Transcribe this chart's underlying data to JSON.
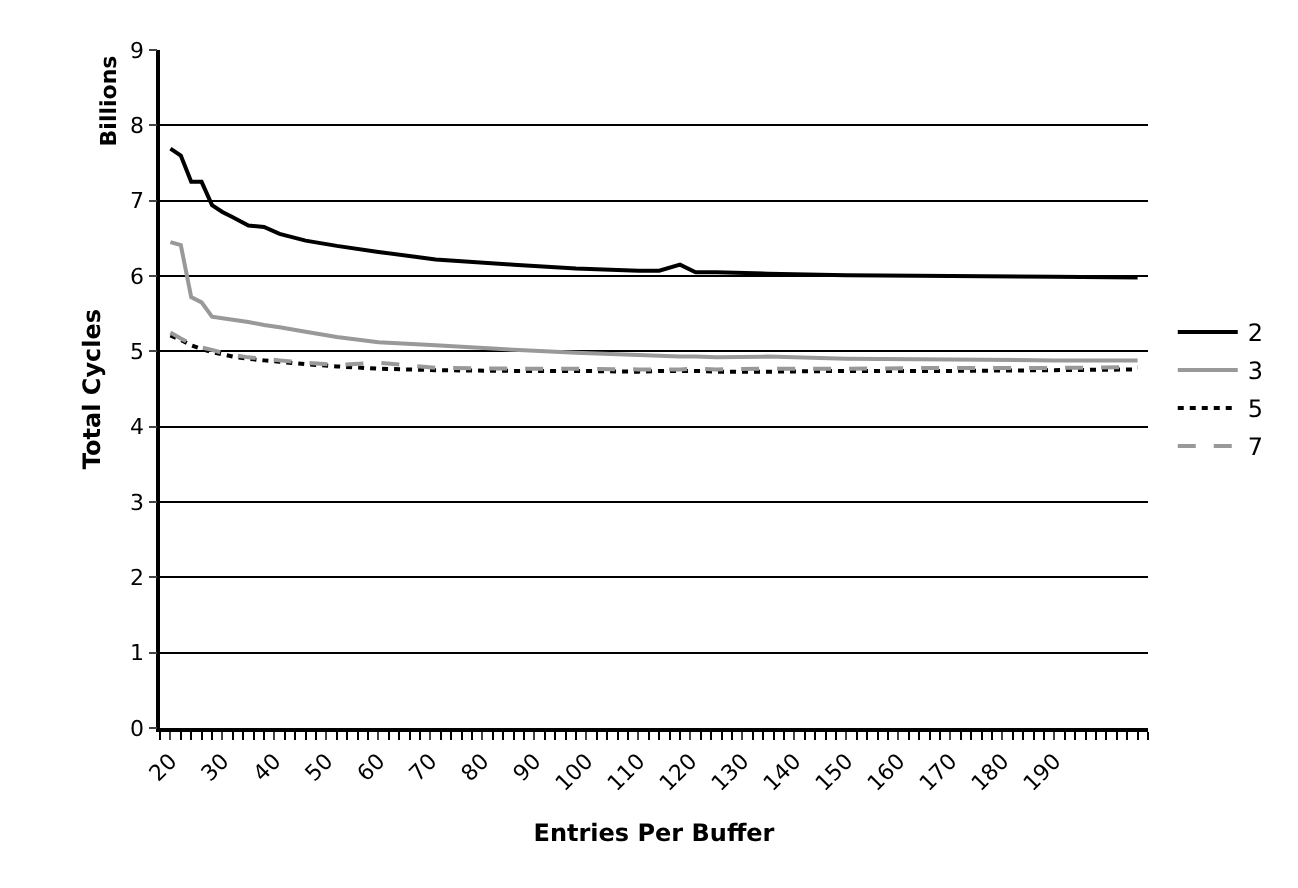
{
  "chart_data": {
    "type": "line",
    "xlabel": "Entries Per Buffer",
    "ylabel": "Total Cycles",
    "annotations": [
      "Billions"
    ],
    "x": [
      20,
      22,
      24,
      26,
      28,
      30,
      32,
      35,
      38,
      41,
      46,
      52,
      60,
      71,
      86,
      98,
      110,
      114,
      118,
      121,
      125,
      135,
      150,
      170,
      190,
      206
    ],
    "xlim": [
      18,
      208
    ],
    "xticks": [
      20,
      30,
      40,
      50,
      60,
      70,
      80,
      90,
      100,
      110,
      120,
      130,
      140,
      150,
      160,
      170,
      180,
      190
    ],
    "ylim": [
      0,
      9
    ],
    "yticks": [
      0,
      1,
      2,
      3,
      4,
      5,
      6,
      7,
      8,
      9
    ],
    "grid": "y",
    "legend": "right",
    "marker": "none",
    "series": [
      {
        "name": "2",
        "color": "#000000",
        "line_style": "solid",
        "values": [
          7.69,
          7.6,
          7.25,
          7.25,
          6.94,
          6.85,
          6.78,
          6.67,
          6.65,
          6.56,
          6.47,
          6.4,
          6.32,
          6.22,
          6.15,
          6.1,
          6.07,
          6.07,
          6.15,
          6.05,
          6.05,
          6.03,
          6.01,
          6.0,
          5.99,
          5.98
        ]
      },
      {
        "name": "3",
        "color": "#999999",
        "line_style": "solid",
        "values": [
          6.45,
          6.41,
          5.72,
          5.65,
          5.46,
          5.44,
          5.42,
          5.39,
          5.35,
          5.32,
          5.26,
          5.19,
          5.12,
          5.08,
          5.02,
          4.98,
          4.95,
          4.94,
          4.93,
          4.93,
          4.92,
          4.93,
          4.9,
          4.89,
          4.88,
          4.88
        ]
      },
      {
        "name": "5",
        "color": "#000000",
        "line_style": "dotted",
        "values": [
          5.21,
          5.15,
          5.08,
          5.03,
          4.99,
          4.96,
          4.93,
          4.9,
          4.88,
          4.86,
          4.83,
          4.8,
          4.77,
          4.75,
          4.74,
          4.74,
          4.73,
          4.74,
          4.74,
          4.74,
          4.73,
          4.73,
          4.74,
          4.74,
          4.75,
          4.76
        ]
      },
      {
        "name": "7",
        "color": "#999999",
        "line_style": "dashed",
        "values": [
          5.25,
          5.17,
          5.1,
          5.05,
          5.02,
          4.98,
          4.95,
          4.92,
          4.9,
          4.88,
          4.85,
          4.82,
          4.85,
          4.78,
          4.77,
          4.77,
          4.76,
          4.76,
          4.76,
          4.77,
          4.76,
          4.77,
          4.77,
          4.78,
          4.78,
          4.79
        ]
      }
    ]
  }
}
